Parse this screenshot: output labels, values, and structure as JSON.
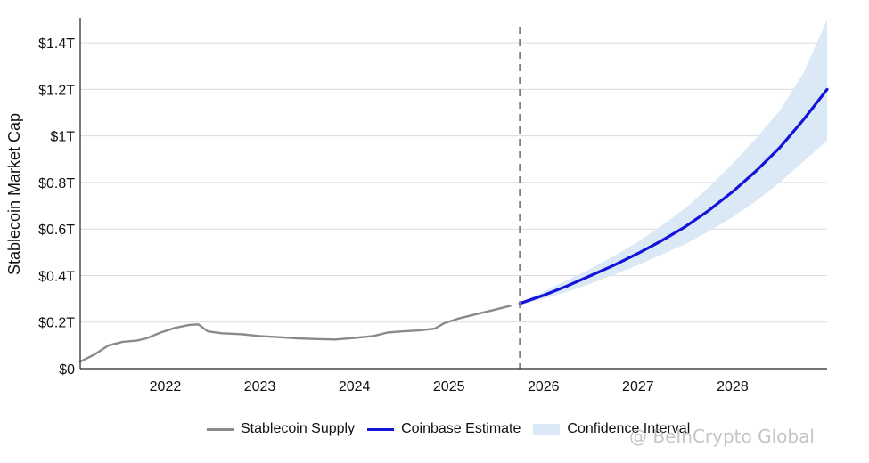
{
  "chart_data": {
    "type": "line",
    "title": "",
    "xlabel": "",
    "ylabel": "Stablecoin Market Cap",
    "xlim": [
      2021.1,
      2029.0
    ],
    "ylim": [
      0,
      1.5
    ],
    "x_ticks": [
      2022,
      2023,
      2024,
      2025,
      2026,
      2027,
      2028
    ],
    "x_tick_labels": [
      "2022",
      "2023",
      "2024",
      "2025",
      "2026",
      "2027",
      "2028"
    ],
    "y_ticks": [
      0,
      0.2,
      0.4,
      0.6,
      0.8,
      1.0,
      1.2,
      1.4
    ],
    "y_tick_labels": [
      "$0",
      "$0.2T",
      "$0.4T",
      "$0.6T",
      "$0.8T",
      "$1T",
      "$1.2T",
      "$1.4T"
    ],
    "grid": "horizontal",
    "legend_position": "bottom-center",
    "divider_x": 2025.75,
    "series": [
      {
        "name": "Stablecoin Supply",
        "color": "#8a8a8a",
        "x": [
          2021.1,
          2021.25,
          2021.4,
          2021.55,
          2021.7,
          2021.8,
          2021.95,
          2022.1,
          2022.25,
          2022.35,
          2022.45,
          2022.6,
          2022.8,
          2023.0,
          2023.2,
          2023.4,
          2023.6,
          2023.8,
          2024.0,
          2024.2,
          2024.35,
          2024.5,
          2024.7,
          2024.85,
          2024.95,
          2025.1,
          2025.3,
          2025.5,
          2025.65
        ],
        "values": [
          0.03,
          0.06,
          0.1,
          0.115,
          0.12,
          0.13,
          0.155,
          0.175,
          0.188,
          0.19,
          0.16,
          0.152,
          0.148,
          0.14,
          0.135,
          0.13,
          0.127,
          0.125,
          0.132,
          0.14,
          0.155,
          0.16,
          0.165,
          0.172,
          0.195,
          0.215,
          0.235,
          0.255,
          0.27
        ]
      },
      {
        "name": "Coinbase Estimate",
        "color": "#1414d8",
        "x": [
          2025.75,
          2026.0,
          2026.25,
          2026.5,
          2026.75,
          2027.0,
          2027.25,
          2027.5,
          2027.75,
          2028.0,
          2028.25,
          2028.5,
          2028.75,
          2029.0
        ],
        "values": [
          0.28,
          0.315,
          0.355,
          0.4,
          0.445,
          0.495,
          0.55,
          0.61,
          0.68,
          0.76,
          0.85,
          0.95,
          1.07,
          1.2
        ]
      }
    ],
    "confidence_interval": {
      "name": "Confidence Interval",
      "color": "#dbe9f7",
      "x": [
        2025.75,
        2026.0,
        2026.25,
        2026.5,
        2026.75,
        2027.0,
        2027.25,
        2027.5,
        2027.75,
        2028.0,
        2028.25,
        2028.5,
        2028.75,
        2029.0
      ],
      "upper": [
        0.285,
        0.33,
        0.38,
        0.43,
        0.485,
        0.545,
        0.615,
        0.69,
        0.78,
        0.88,
        0.99,
        1.11,
        1.27,
        1.5
      ],
      "lower": [
        0.275,
        0.3,
        0.33,
        0.365,
        0.405,
        0.445,
        0.49,
        0.535,
        0.59,
        0.65,
        0.72,
        0.8,
        0.89,
        0.98
      ]
    }
  },
  "watermark": {
    "text": "@ BeInCrypto Global"
  }
}
